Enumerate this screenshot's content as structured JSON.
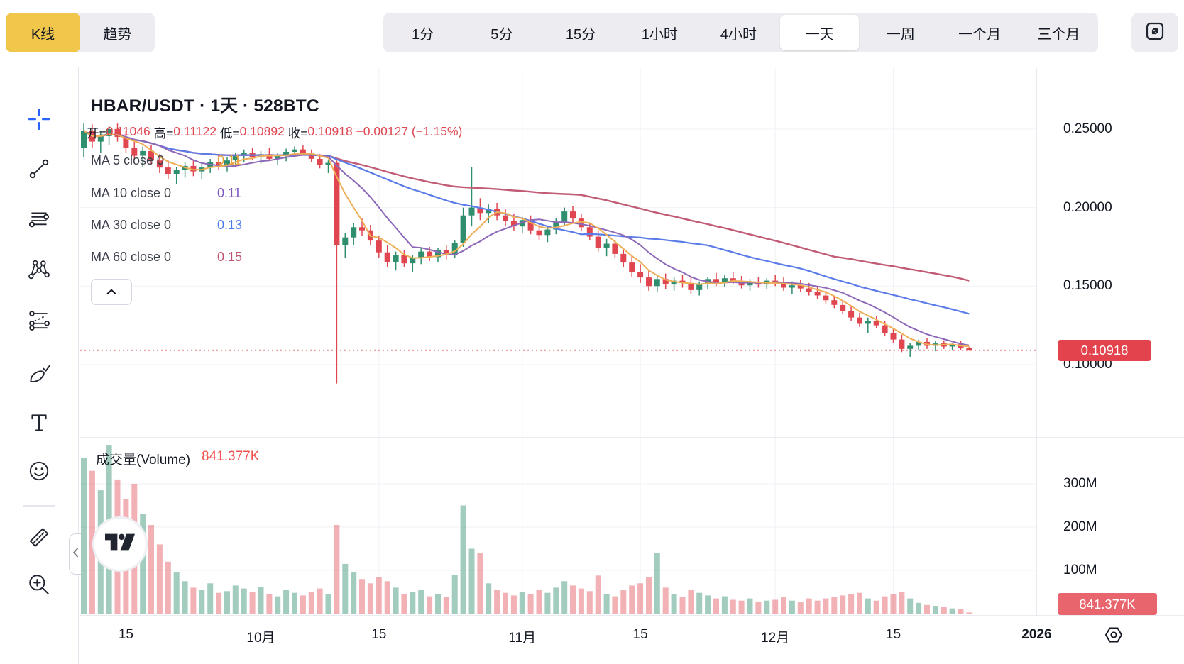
{
  "header": {
    "chart_type_tabs": [
      {
        "label": "K线",
        "active": true
      },
      {
        "label": "趋势",
        "active": false
      }
    ],
    "timeframes": [
      {
        "label": "1分",
        "active": false
      },
      {
        "label": "5分",
        "active": false
      },
      {
        "label": "15分",
        "active": false
      },
      {
        "label": "1小时",
        "active": false
      },
      {
        "label": "4小时",
        "active": false
      },
      {
        "label": "一天",
        "active": true
      },
      {
        "label": "一周",
        "active": false
      },
      {
        "label": "一个月",
        "active": false
      },
      {
        "label": "三个月",
        "active": false
      }
    ],
    "fullscreen_icon": "expand-icon"
  },
  "sidebar": {
    "tools": [
      {
        "name": "crosshair",
        "icon": "crosshair-icon",
        "active": true
      },
      {
        "name": "trend-line",
        "icon": "trend-line-icon",
        "active": false
      },
      {
        "name": "horizontal-lines",
        "icon": "fib-lines-icon",
        "active": false
      },
      {
        "name": "xabcd-pattern",
        "icon": "xabcd-pattern-icon",
        "active": false
      },
      {
        "name": "parallel-channel",
        "icon": "parallel-channel-icon",
        "active": false
      },
      {
        "name": "brush",
        "icon": "brush-icon",
        "active": false
      },
      {
        "name": "text",
        "icon": "text-icon",
        "active": false
      },
      {
        "name": "emoji",
        "icon": "emoji-icon",
        "active": false
      },
      {
        "name": "divider",
        "icon": "divider",
        "active": false
      },
      {
        "name": "ruler",
        "icon": "ruler-icon",
        "active": false
      },
      {
        "name": "zoom-in",
        "icon": "zoom-in-icon",
        "active": false
      }
    ]
  },
  "legend": {
    "title": "HBAR/USDT · 1天 · 528BTC",
    "ohlc": [
      {
        "label": "开=",
        "value": "0.11046"
      },
      {
        "label": "高=",
        "value": "0.11122"
      },
      {
        "label": "低=",
        "value": "0.10892"
      },
      {
        "label": "收=",
        "value": "0.10918"
      }
    ],
    "change": "−0.00127 (−1.15%)",
    "ma_rows": [
      {
        "label": "MA 5 close 0",
        "value": "0.11",
        "color": "#e8a33d"
      },
      {
        "label": "MA 10 close 0",
        "value": "0.11",
        "color": "#7e57c2"
      },
      {
        "label": "MA 30 close 0",
        "value": "0.13",
        "color": "#4a7bee"
      },
      {
        "label": "MA 60 close 0",
        "value": "0.15",
        "color": "#c0506e"
      }
    ],
    "collapse_icon": "chevron-up-icon"
  },
  "volume_pane": {
    "label": "成交量(Volume)",
    "value": "841.377K"
  },
  "badges": {
    "price": {
      "text": "0.10918",
      "color": "#e2434c"
    },
    "volume": {
      "text": "841.377K",
      "color": "#e8656d"
    }
  },
  "colors": {
    "up": "#2f8e6e",
    "down": "#e0464f",
    "vol_up": "rgba(47,142,110,0.45)",
    "vol_down": "rgba(224,70,79,0.42)",
    "grid": "#f0f2f7",
    "axis_line": "#e4e6ee",
    "accent_yellow": "#f0c64b",
    "crosshair_blue": "#2962ff",
    "price_line": "#e0464f"
  },
  "chart_data": {
    "type": "candlestick",
    "symbol": "HBAR/USDT",
    "interval": "1天",
    "note": "528BTC",
    "current_price": 0.10918,
    "y_axis": {
      "ticks": [
        {
          "label": "0.25000",
          "value": 0.25
        },
        {
          "label": "0.20000",
          "value": 0.2
        },
        {
          "label": "0.15000",
          "value": 0.15
        },
        {
          "label": "0.10000",
          "value": 0.1
        }
      ]
    },
    "volume_axis": {
      "ticks": [
        {
          "label": "300M",
          "value": 300
        },
        {
          "label": "200M",
          "value": 200
        },
        {
          "label": "100M",
          "value": 100
        }
      ]
    },
    "x_axis": {
      "ticks": [
        {
          "label": "15",
          "index": 5,
          "bold": false
        },
        {
          "label": "10月",
          "index": 21,
          "bold": false
        },
        {
          "label": "15",
          "index": 35,
          "bold": false
        },
        {
          "label": "11月",
          "index": 52,
          "bold": false
        },
        {
          "label": "15",
          "index": 66,
          "bold": false
        },
        {
          "label": "12月",
          "index": 82,
          "bold": false
        },
        {
          "label": "15",
          "index": 96,
          "bold": false
        },
        {
          "label": "2026",
          "index": 113,
          "bold": true
        }
      ]
    },
    "moving_averages": [
      {
        "name": "MA5",
        "period": 5,
        "color": "#efae56",
        "width": 2
      },
      {
        "name": "MA10",
        "period": 10,
        "color": "#8d67b8",
        "width": 2
      },
      {
        "name": "MA30",
        "period": 30,
        "color": "#5b7ce8",
        "width": 2.2
      },
      {
        "name": "MA60",
        "period": 60,
        "color": "#c25b76",
        "width": 2.4
      }
    ],
    "candles": [
      [
        0.238,
        0.2535,
        0.232,
        0.249
      ],
      [
        0.249,
        0.253,
        0.238,
        0.242
      ],
      [
        0.242,
        0.248,
        0.235,
        0.2455
      ],
      [
        0.2455,
        0.252,
        0.24,
        0.25
      ],
      [
        0.25,
        0.2535,
        0.242,
        0.245
      ],
      [
        0.245,
        0.249,
        0.235,
        0.238
      ],
      [
        0.238,
        0.243,
        0.23,
        0.233
      ],
      [
        0.233,
        0.239,
        0.226,
        0.236
      ],
      [
        0.236,
        0.24,
        0.227,
        0.23
      ],
      [
        0.23,
        0.234,
        0.222,
        0.2255
      ],
      [
        0.2255,
        0.23,
        0.218,
        0.2215
      ],
      [
        0.2215,
        0.226,
        0.215,
        0.224
      ],
      [
        0.224,
        0.229,
        0.219,
        0.2265
      ],
      [
        0.2265,
        0.23,
        0.22,
        0.223
      ],
      [
        0.223,
        0.228,
        0.218,
        0.2255
      ],
      [
        0.2255,
        0.231,
        0.222,
        0.229
      ],
      [
        0.229,
        0.233,
        0.224,
        0.227
      ],
      [
        0.227,
        0.232,
        0.223,
        0.23
      ],
      [
        0.23,
        0.235,
        0.226,
        0.233
      ],
      [
        0.233,
        0.237,
        0.229,
        0.235
      ],
      [
        0.235,
        0.238,
        0.23,
        0.232
      ],
      [
        0.232,
        0.236,
        0.228,
        0.234
      ],
      [
        0.234,
        0.238,
        0.23,
        0.231
      ],
      [
        0.231,
        0.235,
        0.227,
        0.2335
      ],
      [
        0.2335,
        0.2375,
        0.2295,
        0.2355
      ],
      [
        0.2355,
        0.239,
        0.232,
        0.237
      ],
      [
        0.237,
        0.2395,
        0.233,
        0.2345
      ],
      [
        0.2345,
        0.237,
        0.229,
        0.231
      ],
      [
        0.231,
        0.234,
        0.225,
        0.227
      ],
      [
        0.227,
        0.23,
        0.222,
        0.2285
      ],
      [
        0.2285,
        0.23,
        0.088,
        0.176
      ],
      [
        0.176,
        0.184,
        0.168,
        0.181
      ],
      [
        0.181,
        0.19,
        0.176,
        0.1875
      ],
      [
        0.1875,
        0.193,
        0.182,
        0.1855
      ],
      [
        0.1855,
        0.189,
        0.176,
        0.179
      ],
      [
        0.179,
        0.182,
        0.168,
        0.1715
      ],
      [
        0.1715,
        0.176,
        0.162,
        0.1655
      ],
      [
        0.1655,
        0.172,
        0.16,
        0.17
      ],
      [
        0.17,
        0.173,
        0.162,
        0.1645
      ],
      [
        0.1645,
        0.17,
        0.159,
        0.168
      ],
      [
        0.168,
        0.174,
        0.164,
        0.172
      ],
      [
        0.172,
        0.175,
        0.166,
        0.1685
      ],
      [
        0.1685,
        0.1745,
        0.165,
        0.173
      ],
      [
        0.173,
        0.176,
        0.167,
        0.17
      ],
      [
        0.17,
        0.179,
        0.168,
        0.1775
      ],
      [
        0.1775,
        0.2,
        0.175,
        0.195
      ],
      [
        0.195,
        0.226,
        0.188,
        0.2
      ],
      [
        0.2,
        0.206,
        0.192,
        0.1965
      ],
      [
        0.1965,
        0.202,
        0.19,
        0.199
      ],
      [
        0.199,
        0.203,
        0.192,
        0.195
      ],
      [
        0.195,
        0.199,
        0.188,
        0.1915
      ],
      [
        0.1915,
        0.196,
        0.185,
        0.188
      ],
      [
        0.188,
        0.194,
        0.184,
        0.192
      ],
      [
        0.192,
        0.195,
        0.183,
        0.1855
      ],
      [
        0.1855,
        0.19,
        0.179,
        0.1825
      ],
      [
        0.1825,
        0.188,
        0.178,
        0.186
      ],
      [
        0.186,
        0.193,
        0.183,
        0.191
      ],
      [
        0.191,
        0.2,
        0.188,
        0.1975
      ],
      [
        0.1975,
        0.201,
        0.19,
        0.193
      ],
      [
        0.193,
        0.196,
        0.185,
        0.1875
      ],
      [
        0.1875,
        0.19,
        0.179,
        0.1815
      ],
      [
        0.1815,
        0.185,
        0.172,
        0.1745
      ],
      [
        0.1745,
        0.18,
        0.169,
        0.177
      ],
      [
        0.177,
        0.1795,
        0.168,
        0.1705
      ],
      [
        0.1705,
        0.174,
        0.162,
        0.165
      ],
      [
        0.165,
        0.169,
        0.156,
        0.159
      ],
      [
        0.159,
        0.164,
        0.152,
        0.1555
      ],
      [
        0.1555,
        0.16,
        0.147,
        0.15
      ],
      [
        0.15,
        0.157,
        0.146,
        0.1545
      ],
      [
        0.1545,
        0.158,
        0.148,
        0.151
      ],
      [
        0.151,
        0.156,
        0.147,
        0.1535
      ],
      [
        0.1535,
        0.157,
        0.149,
        0.152
      ],
      [
        0.152,
        0.1555,
        0.145,
        0.1475
      ],
      [
        0.1475,
        0.153,
        0.144,
        0.1515
      ],
      [
        0.1515,
        0.156,
        0.148,
        0.1545
      ],
      [
        0.1545,
        0.1585,
        0.15,
        0.1525
      ],
      [
        0.1525,
        0.157,
        0.1495,
        0.155
      ],
      [
        0.155,
        0.159,
        0.151,
        0.153
      ],
      [
        0.153,
        0.1565,
        0.1485,
        0.1505
      ],
      [
        0.1505,
        0.1545,
        0.147,
        0.1525
      ],
      [
        0.1525,
        0.156,
        0.149,
        0.151
      ],
      [
        0.151,
        0.155,
        0.148,
        0.1535
      ],
      [
        0.1535,
        0.157,
        0.15,
        0.152
      ],
      [
        0.152,
        0.1555,
        0.147,
        0.149
      ],
      [
        0.149,
        0.153,
        0.145,
        0.1505
      ],
      [
        0.1505,
        0.154,
        0.1465,
        0.1485
      ],
      [
        0.1485,
        0.152,
        0.144,
        0.1465
      ],
      [
        0.1465,
        0.15,
        0.142,
        0.144
      ],
      [
        0.144,
        0.147,
        0.139,
        0.141
      ],
      [
        0.141,
        0.144,
        0.136,
        0.138
      ],
      [
        0.138,
        0.141,
        0.132,
        0.134
      ],
      [
        0.134,
        0.137,
        0.128,
        0.13
      ],
      [
        0.13,
        0.133,
        0.124,
        0.126
      ],
      [
        0.126,
        0.13,
        0.12,
        0.128
      ],
      [
        0.128,
        0.131,
        0.123,
        0.125
      ],
      [
        0.125,
        0.128,
        0.118,
        0.12
      ],
      [
        0.12,
        0.123,
        0.114,
        0.116
      ],
      [
        0.116,
        0.119,
        0.108,
        0.11
      ],
      [
        0.11,
        0.114,
        0.105,
        0.112
      ],
      [
        0.112,
        0.116,
        0.109,
        0.1145
      ],
      [
        0.1145,
        0.117,
        0.11,
        0.112
      ],
      [
        0.112,
        0.115,
        0.1085,
        0.1135
      ],
      [
        0.1135,
        0.1155,
        0.11,
        0.1115
      ],
      [
        0.1115,
        0.114,
        0.109,
        0.113
      ],
      [
        0.113,
        0.115,
        0.1095,
        0.1105
      ],
      [
        0.11046,
        0.11122,
        0.10892,
        0.10918
      ]
    ],
    "volumes_m": [
      360,
      330,
      285,
      390,
      310,
      265,
      300,
      230,
      205,
      160,
      120,
      95,
      75,
      60,
      55,
      70,
      48,
      52,
      65,
      58,
      50,
      62,
      45,
      40,
      55,
      48,
      42,
      50,
      58,
      45,
      205,
      115,
      95,
      80,
      70,
      85,
      75,
      60,
      45,
      50,
      55,
      40,
      45,
      38,
      90,
      250,
      150,
      140,
      70,
      55,
      48,
      42,
      50,
      45,
      55,
      48,
      60,
      75,
      65,
      58,
      52,
      88,
      45,
      40,
      55,
      65,
      70,
      85,
      140,
      60,
      45,
      38,
      55,
      48,
      42,
      35,
      40,
      32,
      30,
      35,
      28,
      30,
      32,
      38,
      30,
      26,
      35,
      30,
      35,
      38,
      42,
      45,
      48,
      35,
      30,
      40,
      45,
      50,
      35,
      25,
      20,
      18,
      15,
      12,
      10,
      0.84
    ]
  }
}
